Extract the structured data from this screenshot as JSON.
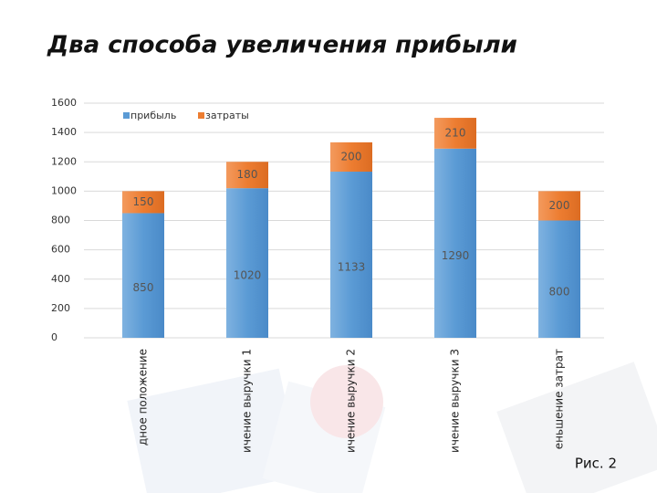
{
  "chart_data": {
    "type": "stacked-bar",
    "title": "Два способа увеличения прибыли",
    "caption": "Рис. 2",
    "categories": [
      "дное положение",
      "ичение выручки 1",
      "ичение выручки 2",
      "ичение выручки 3",
      "еньшение затрат"
    ],
    "series": [
      {
        "name": "прибыль",
        "color": "#5b9bd5",
        "values": [
          850,
          1020,
          1133,
          1290,
          800
        ]
      },
      {
        "name": "затраты",
        "color": "#ed7d31",
        "values": [
          150,
          180,
          200,
          210,
          200
        ]
      }
    ],
    "ylim": [
      0,
      1600
    ],
    "yticks": [
      0,
      200,
      400,
      600,
      800,
      1000,
      1200,
      1400,
      1600
    ],
    "grid": true
  }
}
